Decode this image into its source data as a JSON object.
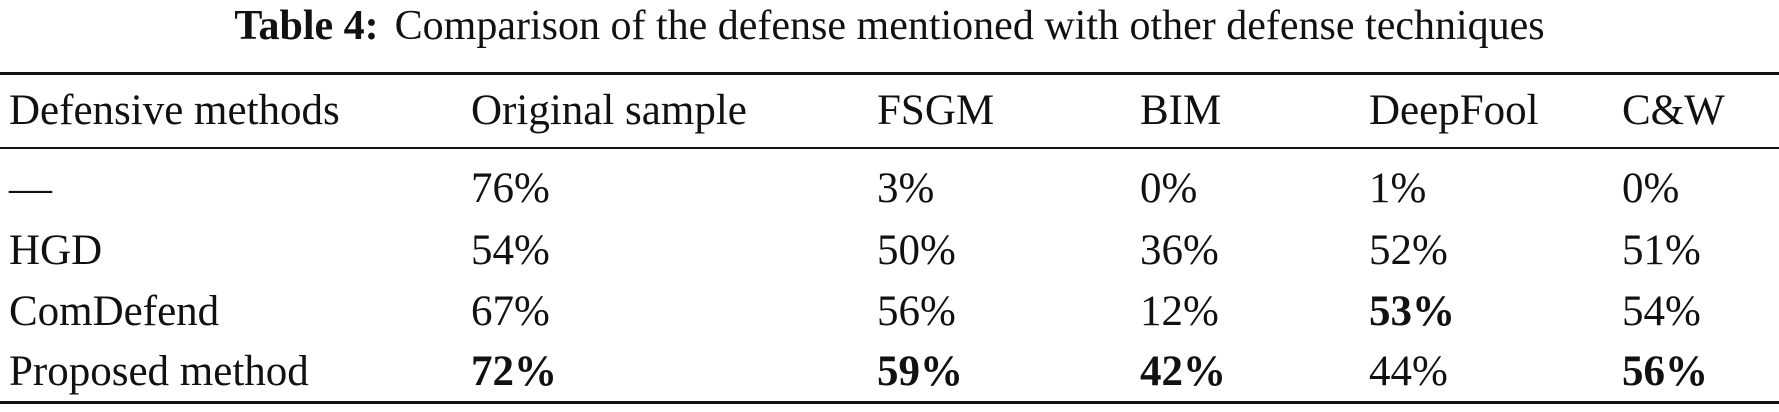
{
  "table": {
    "caption": {
      "label": "Table 4:",
      "text": "Comparison of the defense mentioned with other defense techniques"
    },
    "header": [
      "Defensive methods",
      "Original sample",
      "FSGM",
      "BIM",
      "DeepFool",
      "C&W"
    ],
    "rows": [
      {
        "cells": [
          "—",
          "76%",
          "3%",
          "0%",
          "1%",
          "0%"
        ],
        "bold": [
          false,
          false,
          false,
          false,
          false,
          false
        ]
      },
      {
        "cells": [
          "HGD",
          "54%",
          "50%",
          "36%",
          "52%",
          "51%"
        ],
        "bold": [
          false,
          false,
          false,
          false,
          false,
          false
        ]
      },
      {
        "cells": [
          "ComDefend",
          "67%",
          "56%",
          "12%",
          "53%",
          "54%"
        ],
        "bold": [
          false,
          false,
          false,
          false,
          true,
          false
        ]
      },
      {
        "cells": [
          "Proposed method",
          "72%",
          "59%",
          "42%",
          "44%",
          "56%"
        ],
        "bold": [
          false,
          true,
          true,
          true,
          false,
          true
        ]
      }
    ]
  }
}
